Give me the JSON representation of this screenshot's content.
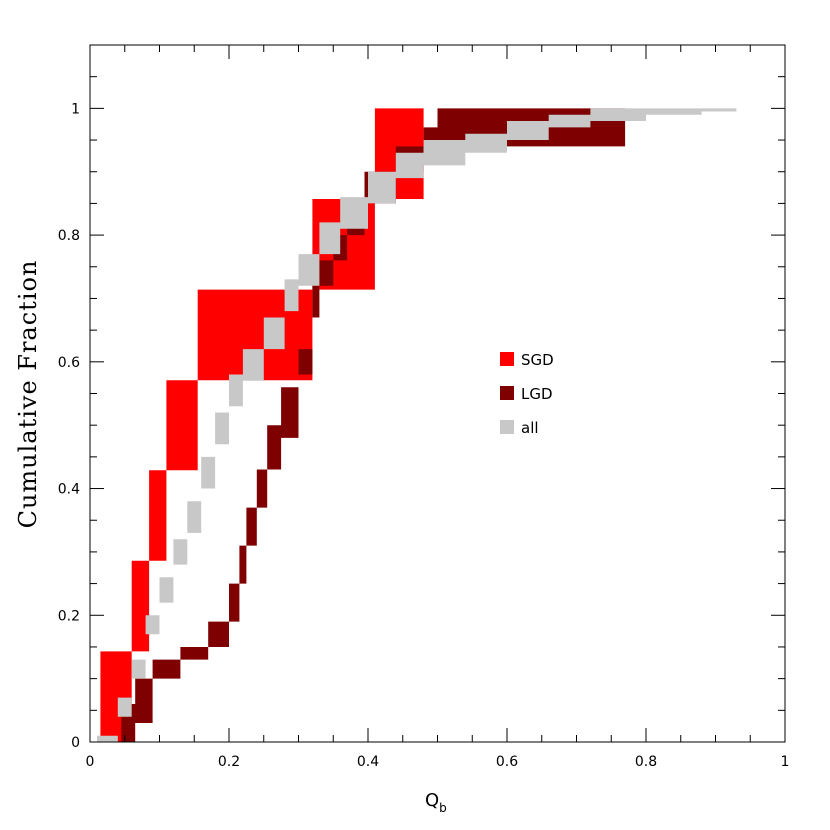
{
  "chart_data": {
    "type": "area",
    "xlabel_main": "Q",
    "xlabel_sub": "b",
    "ylabel": "Cumulative Fraction",
    "xlim": [
      0,
      1
    ],
    "ylim": [
      0,
      1.1
    ],
    "x_ticks": [
      0,
      0.2,
      0.4,
      0.6,
      0.8,
      1
    ],
    "x_tick_labels": [
      "0",
      "0.2",
      "0.4",
      "0.6",
      "0.8",
      "1"
    ],
    "y_ticks": [
      0,
      0.2,
      0.4,
      0.6,
      0.8,
      1
    ],
    "y_tick_labels": [
      "0",
      "0.2",
      "0.4",
      "0.6",
      "0.8",
      "1"
    ],
    "legend_position": "center-right",
    "series": [
      {
        "name": "SGD",
        "color": "#ff0000",
        "x": [
          0.015,
          0.03,
          0.06,
          0.085,
          0.11,
          0.155,
          0.32,
          0.41,
          0.48,
          0.5
        ],
        "lower": [
          0.0,
          0.0,
          0.143,
          0.286,
          0.429,
          0.571,
          0.714,
          0.857,
          1.0,
          1.0
        ],
        "upper": [
          0.143,
          0.143,
          0.286,
          0.429,
          0.571,
          0.714,
          0.857,
          1.0,
          1.0,
          1.0
        ]
      },
      {
        "name": "LGD",
        "color": "#7f0000",
        "x": [
          0.03,
          0.045,
          0.065,
          0.09,
          0.13,
          0.17,
          0.2,
          0.215,
          0.225,
          0.24,
          0.255,
          0.275,
          0.3,
          0.32,
          0.33,
          0.35,
          0.37,
          0.395,
          0.44,
          0.48,
          0.5,
          0.66,
          0.75,
          0.77
        ],
        "lower": [
          0.0,
          0.0,
          0.03,
          0.1,
          0.13,
          0.15,
          0.19,
          0.25,
          0.31,
          0.37,
          0.43,
          0.48,
          0.58,
          0.67,
          0.72,
          0.76,
          0.8,
          0.85,
          0.9,
          0.94,
          0.94,
          0.94,
          0.94,
          1.0
        ],
        "upper": [
          0.0,
          0.06,
          0.1,
          0.13,
          0.15,
          0.19,
          0.25,
          0.31,
          0.37,
          0.43,
          0.5,
          0.56,
          0.62,
          0.72,
          0.76,
          0.8,
          0.85,
          0.9,
          0.94,
          0.97,
          1.0,
          1.0,
          1.0,
          1.0
        ]
      },
      {
        "name": "all",
        "color": "#c8c8c8",
        "x": [
          0.01,
          0.04,
          0.06,
          0.08,
          0.1,
          0.12,
          0.14,
          0.16,
          0.18,
          0.2,
          0.22,
          0.25,
          0.28,
          0.3,
          0.33,
          0.36,
          0.4,
          0.44,
          0.48,
          0.54,
          0.6,
          0.66,
          0.72,
          0.8,
          0.88,
          0.93,
          1.0
        ],
        "lower": [
          0.0,
          0.04,
          0.1,
          0.17,
          0.22,
          0.28,
          0.33,
          0.4,
          0.47,
          0.53,
          0.57,
          0.62,
          0.68,
          0.72,
          0.77,
          0.81,
          0.85,
          0.89,
          0.91,
          0.93,
          0.95,
          0.97,
          0.98,
          0.99,
          0.995,
          1.0,
          1.0
        ],
        "upper": [
          0.01,
          0.07,
          0.13,
          0.2,
          0.26,
          0.32,
          0.38,
          0.45,
          0.52,
          0.58,
          0.62,
          0.67,
          0.73,
          0.77,
          0.82,
          0.86,
          0.9,
          0.93,
          0.95,
          0.96,
          0.98,
          0.99,
          1.0,
          1.0,
          1.0,
          1.0,
          1.0
        ]
      }
    ]
  }
}
